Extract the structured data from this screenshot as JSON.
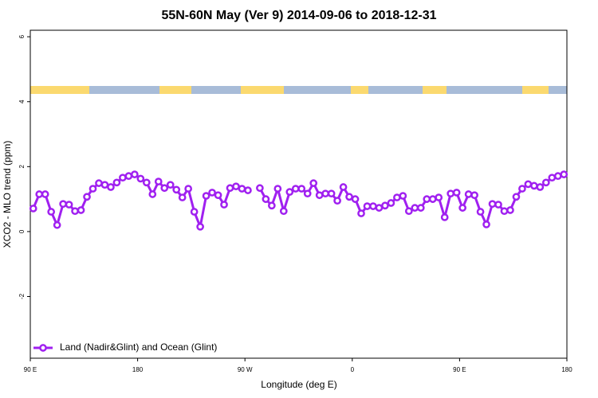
{
  "chart_data": {
    "type": "line",
    "title": "55N-60N May (Ver 9)   2014-09-06 to 2018-12-31",
    "xlabel": "Longitude (deg E)",
    "ylabel": "XCO2 - MLO trend (ppm)",
    "xlim": [
      90,
      540
    ],
    "ylim": [
      -3.9,
      6.2
    ],
    "xticks": [
      {
        "value": 90,
        "label": "90 E"
      },
      {
        "value": 180,
        "label": "180"
      },
      {
        "value": 270,
        "label": "90 W"
      },
      {
        "value": 360,
        "label": "0"
      },
      {
        "value": 450,
        "label": "90 E"
      },
      {
        "value": 540,
        "label": "180"
      }
    ],
    "yticks": [
      -2,
      0,
      2,
      4,
      6
    ],
    "legend": "bottomleft",
    "x": [
      92.5,
      97.5,
      102.5,
      107.5,
      112.5,
      117.5,
      122.5,
      127.5,
      132.5,
      137.5,
      142.5,
      147.5,
      152.5,
      157.5,
      162.5,
      167.5,
      172.5,
      177.5,
      182.5,
      187.5,
      192.5,
      197.5,
      202.5,
      207.5,
      212.5,
      217.5,
      222.5,
      227.5,
      232.5,
      237.5,
      242.5,
      247.5,
      252.5,
      257.5,
      262.5,
      267.5,
      272.5,
      277.5,
      282.5,
      287.5,
      292.5,
      297.5,
      302.5,
      307.5,
      312.5,
      317.5,
      322.5,
      327.5,
      332.5,
      337.5,
      342.5,
      347.5,
      352.5,
      357.5,
      362.5,
      367.5,
      372.5,
      377.5,
      382.5,
      387.5,
      392.5,
      397.5,
      402.5,
      407.5,
      412.5,
      417.5,
      422.5,
      427.5,
      432.5,
      437.5,
      442.5,
      447.5,
      452.5,
      457.5,
      462.5,
      467.5,
      472.5,
      477.5,
      482.5,
      487.5,
      492.5,
      497.5,
      502.5,
      507.5,
      512.5,
      517.5,
      522.5,
      527.5,
      532.5,
      537.5
    ],
    "series": [
      {
        "name": "Land (Nadir&Glint) and Ocean (Glint)",
        "color": "#a020f0",
        "values": [
          0.71,
          1.15,
          1.15,
          0.61,
          0.2,
          0.85,
          0.83,
          0.63,
          0.66,
          1.07,
          1.32,
          1.49,
          1.44,
          1.37,
          1.51,
          1.66,
          1.71,
          1.76,
          1.63,
          1.51,
          1.15,
          1.54,
          1.34,
          1.44,
          1.29,
          1.05,
          1.32,
          0.61,
          0.15,
          1.1,
          1.2,
          1.12,
          0.83,
          1.34,
          1.39,
          1.32,
          1.27,
          null,
          1.34,
          1.0,
          0.8,
          1.32,
          0.63,
          1.22,
          1.32,
          1.32,
          1.17,
          1.49,
          1.12,
          1.17,
          1.17,
          0.95,
          1.37,
          1.07,
          1.0,
          0.56,
          0.78,
          0.78,
          0.73,
          0.8,
          0.88,
          1.05,
          1.1,
          0.63,
          0.73,
          0.73,
          1.0,
          1.0,
          1.05,
          0.44,
          1.17,
          1.2,
          0.73,
          1.15,
          1.12,
          0.61,
          0.22,
          0.85,
          0.83,
          0.63,
          0.66,
          1.07,
          1.32,
          1.46,
          1.41,
          1.37,
          1.51,
          1.66,
          1.71,
          1.76
        ]
      }
    ]
  }
}
